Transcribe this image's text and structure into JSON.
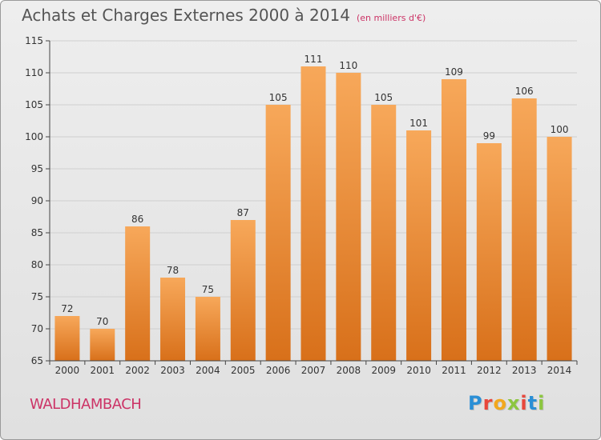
{
  "title": "Achats et Charges Externes 2000 à 2014",
  "subtitle": "(en milliers d'€)",
  "place": "WALDHAMBACH",
  "logo": {
    "text": "Proxiti",
    "colors": [
      "#2a8fd6",
      "#e8463a",
      "#f2a81d",
      "#8cc63f",
      "#e8463a",
      "#2a8fd6",
      "#8cc63f"
    ]
  },
  "colors": {
    "bar_light": "#f7a85a",
    "bar_dark": "#d8701a",
    "grid": "#cfcfcf",
    "axis": "#444444",
    "text": "#333333"
  },
  "chart_data": {
    "type": "bar",
    "title": "Achats et Charges Externes 2000 à 2014",
    "xlabel": "",
    "ylabel": "",
    "ylim": [
      65,
      115
    ],
    "yticks": [
      65,
      70,
      75,
      80,
      85,
      90,
      95,
      100,
      105,
      110,
      115
    ],
    "grid": true,
    "categories": [
      "2000",
      "2001",
      "2002",
      "2003",
      "2004",
      "2005",
      "2006",
      "2007",
      "2008",
      "2009",
      "2010",
      "2011",
      "2012",
      "2013",
      "2014"
    ],
    "values": [
      72,
      70,
      86,
      78,
      75,
      87,
      105,
      111,
      110,
      105,
      101,
      109,
      99,
      106,
      100
    ]
  }
}
